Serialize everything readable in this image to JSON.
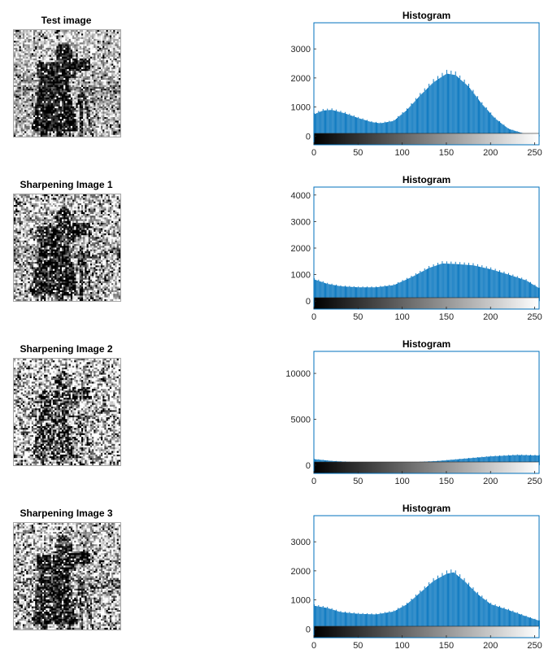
{
  "panels": [
    {
      "image_title": "Test image",
      "image_seed": 11,
      "image_noise": 0.35,
      "image_bias": 0.0
    },
    {
      "image_title": "Sharpening Image 1",
      "image_seed": 23,
      "image_noise": 0.45,
      "image_bias": 0.05
    },
    {
      "image_title": "Sharpening Image 2",
      "image_seed": 37,
      "image_noise": 0.55,
      "image_bias": 0.35
    },
    {
      "image_title": "Sharpening Image 3",
      "image_seed": 53,
      "image_noise": 0.45,
      "image_bias": 0.05
    }
  ],
  "colors": {
    "bar": "#0072bd",
    "axis": "#262626",
    "frame": "#0072bd"
  },
  "chart_data": [
    {
      "type": "bar",
      "title": "Histogram",
      "xlim": [
        0,
        255
      ],
      "ylim": [
        -300,
        3900
      ],
      "xticks": [
        0,
        50,
        100,
        150,
        200,
        250
      ],
      "yticks": [
        0,
        1000,
        2000,
        3000
      ],
      "profile": [
        [
          0,
          750
        ],
        [
          10,
          880
        ],
        [
          20,
          900
        ],
        [
          35,
          780
        ],
        [
          50,
          620
        ],
        [
          65,
          480
        ],
        [
          75,
          440
        ],
        [
          90,
          520
        ],
        [
          105,
          900
        ],
        [
          120,
          1400
        ],
        [
          135,
          1850
        ],
        [
          150,
          2150
        ],
        [
          160,
          2100
        ],
        [
          175,
          1700
        ],
        [
          190,
          1100
        ],
        [
          205,
          600
        ],
        [
          220,
          250
        ],
        [
          240,
          60
        ],
        [
          255,
          20
        ]
      ]
    },
    {
      "type": "bar",
      "title": "Histogram",
      "xlim": [
        0,
        255
      ],
      "ylim": [
        -300,
        4300
      ],
      "xticks": [
        0,
        50,
        100,
        150,
        200,
        250
      ],
      "yticks": [
        0,
        1000,
        2000,
        3000,
        4000
      ],
      "profile": [
        [
          0,
          820
        ],
        [
          15,
          650
        ],
        [
          30,
          560
        ],
        [
          50,
          520
        ],
        [
          70,
          520
        ],
        [
          90,
          600
        ],
        [
          110,
          900
        ],
        [
          130,
          1250
        ],
        [
          145,
          1420
        ],
        [
          160,
          1400
        ],
        [
          180,
          1350
        ],
        [
          200,
          1200
        ],
        [
          220,
          1000
        ],
        [
          240,
          780
        ],
        [
          255,
          480
        ]
      ]
    },
    {
      "type": "bar",
      "title": "Histogram",
      "xlim": [
        0,
        255
      ],
      "ylim": [
        -900,
        12400
      ],
      "xticks": [
        0,
        50,
        100,
        150,
        200,
        250
      ],
      "yticks": [
        0,
        5000,
        10000
      ],
      "profile": [
        [
          0,
          650
        ],
        [
          20,
          450
        ],
        [
          50,
          300
        ],
        [
          80,
          250
        ],
        [
          110,
          300
        ],
        [
          140,
          450
        ],
        [
          170,
          700
        ],
        [
          200,
          950
        ],
        [
          230,
          1100
        ],
        [
          255,
          1050
        ]
      ]
    },
    {
      "type": "bar",
      "title": "Histogram",
      "xlim": [
        0,
        255
      ],
      "ylim": [
        -300,
        3900
      ],
      "xticks": [
        0,
        50,
        100,
        150,
        200,
        250
      ],
      "yticks": [
        0,
        1000,
        2000,
        3000
      ],
      "profile": [
        [
          0,
          800
        ],
        [
          15,
          720
        ],
        [
          30,
          580
        ],
        [
          50,
          520
        ],
        [
          70,
          500
        ],
        [
          90,
          600
        ],
        [
          105,
          850
        ],
        [
          120,
          1250
        ],
        [
          135,
          1650
        ],
        [
          150,
          1900
        ],
        [
          158,
          1950
        ],
        [
          170,
          1650
        ],
        [
          185,
          1200
        ],
        [
          200,
          850
        ],
        [
          220,
          650
        ],
        [
          240,
          430
        ],
        [
          255,
          280
        ]
      ]
    }
  ]
}
